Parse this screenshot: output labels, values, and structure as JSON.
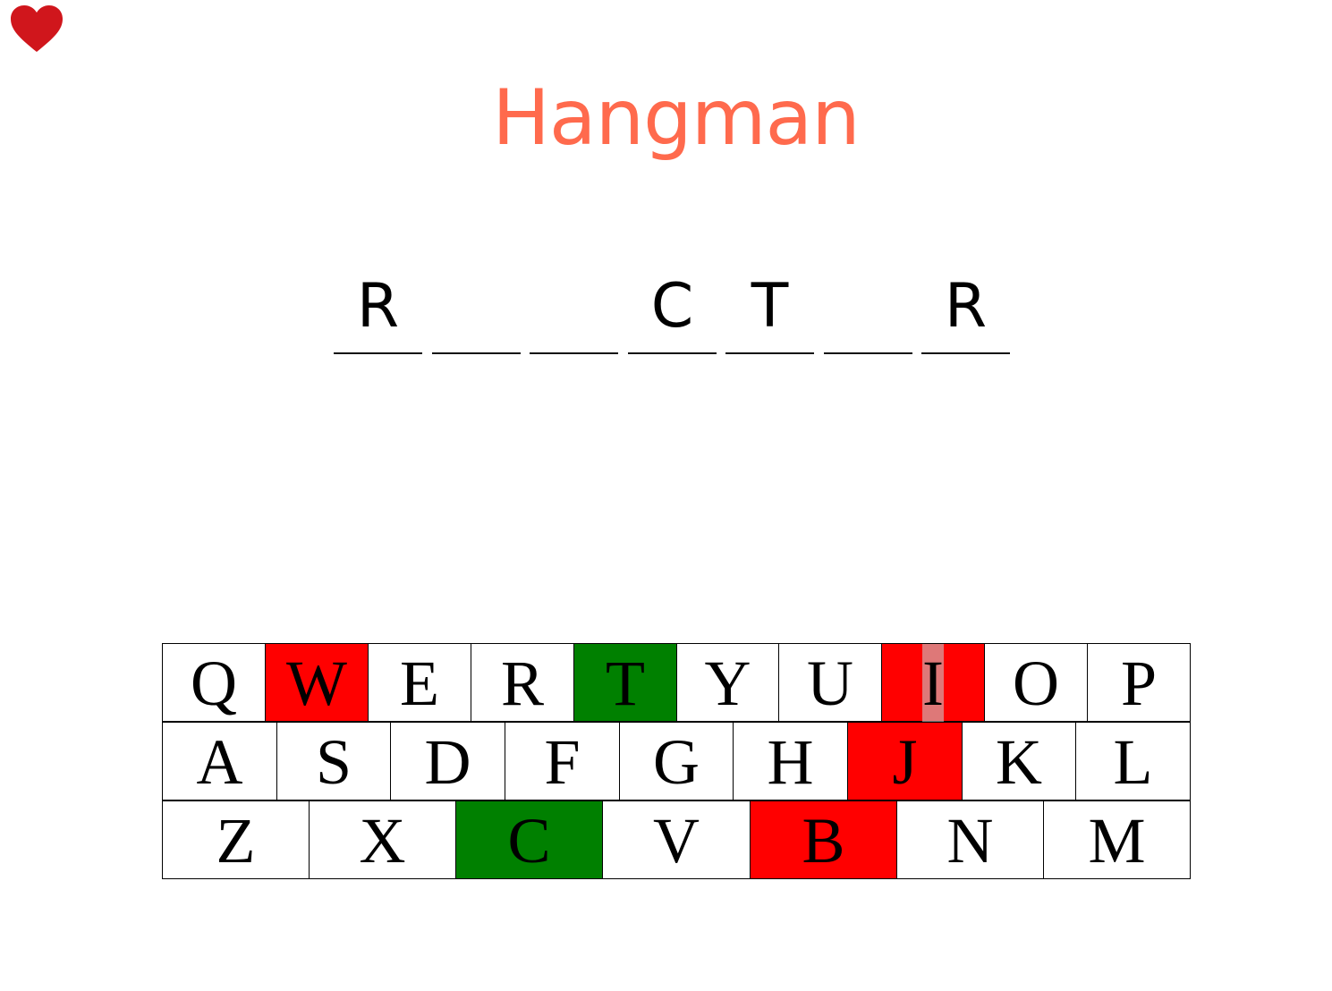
{
  "app": {
    "title": "Hangman",
    "title_color": "#FF6A4D",
    "lives_icon": "heart-icon",
    "heart_color": "#D0161C"
  },
  "word": {
    "slots": [
      "R",
      "",
      "",
      "C",
      "T",
      "",
      "R"
    ]
  },
  "colors": {
    "correct": "#008000",
    "wrong": "#FF0000",
    "unused": "#FFFFFF"
  },
  "keyboard": {
    "rows": [
      [
        {
          "letter": "Q",
          "state": "unused"
        },
        {
          "letter": "W",
          "state": "wrong"
        },
        {
          "letter": "E",
          "state": "unused"
        },
        {
          "letter": "R",
          "state": "unused"
        },
        {
          "letter": "T",
          "state": "correct"
        },
        {
          "letter": "Y",
          "state": "unused"
        },
        {
          "letter": "U",
          "state": "unused"
        },
        {
          "letter": "I",
          "state": "wrong",
          "highlighted": true
        },
        {
          "letter": "O",
          "state": "unused"
        },
        {
          "letter": "P",
          "state": "unused"
        }
      ],
      [
        {
          "letter": "A",
          "state": "unused"
        },
        {
          "letter": "S",
          "state": "unused"
        },
        {
          "letter": "D",
          "state": "unused"
        },
        {
          "letter": "F",
          "state": "unused"
        },
        {
          "letter": "G",
          "state": "unused"
        },
        {
          "letter": "H",
          "state": "unused"
        },
        {
          "letter": "J",
          "state": "wrong"
        },
        {
          "letter": "K",
          "state": "unused"
        },
        {
          "letter": "L",
          "state": "unused"
        }
      ],
      [
        {
          "letter": "Z",
          "state": "unused"
        },
        {
          "letter": "X",
          "state": "unused"
        },
        {
          "letter": "C",
          "state": "correct"
        },
        {
          "letter": "V",
          "state": "unused"
        },
        {
          "letter": "B",
          "state": "wrong"
        },
        {
          "letter": "N",
          "state": "unused"
        },
        {
          "letter": "M",
          "state": "unused"
        }
      ]
    ]
  }
}
